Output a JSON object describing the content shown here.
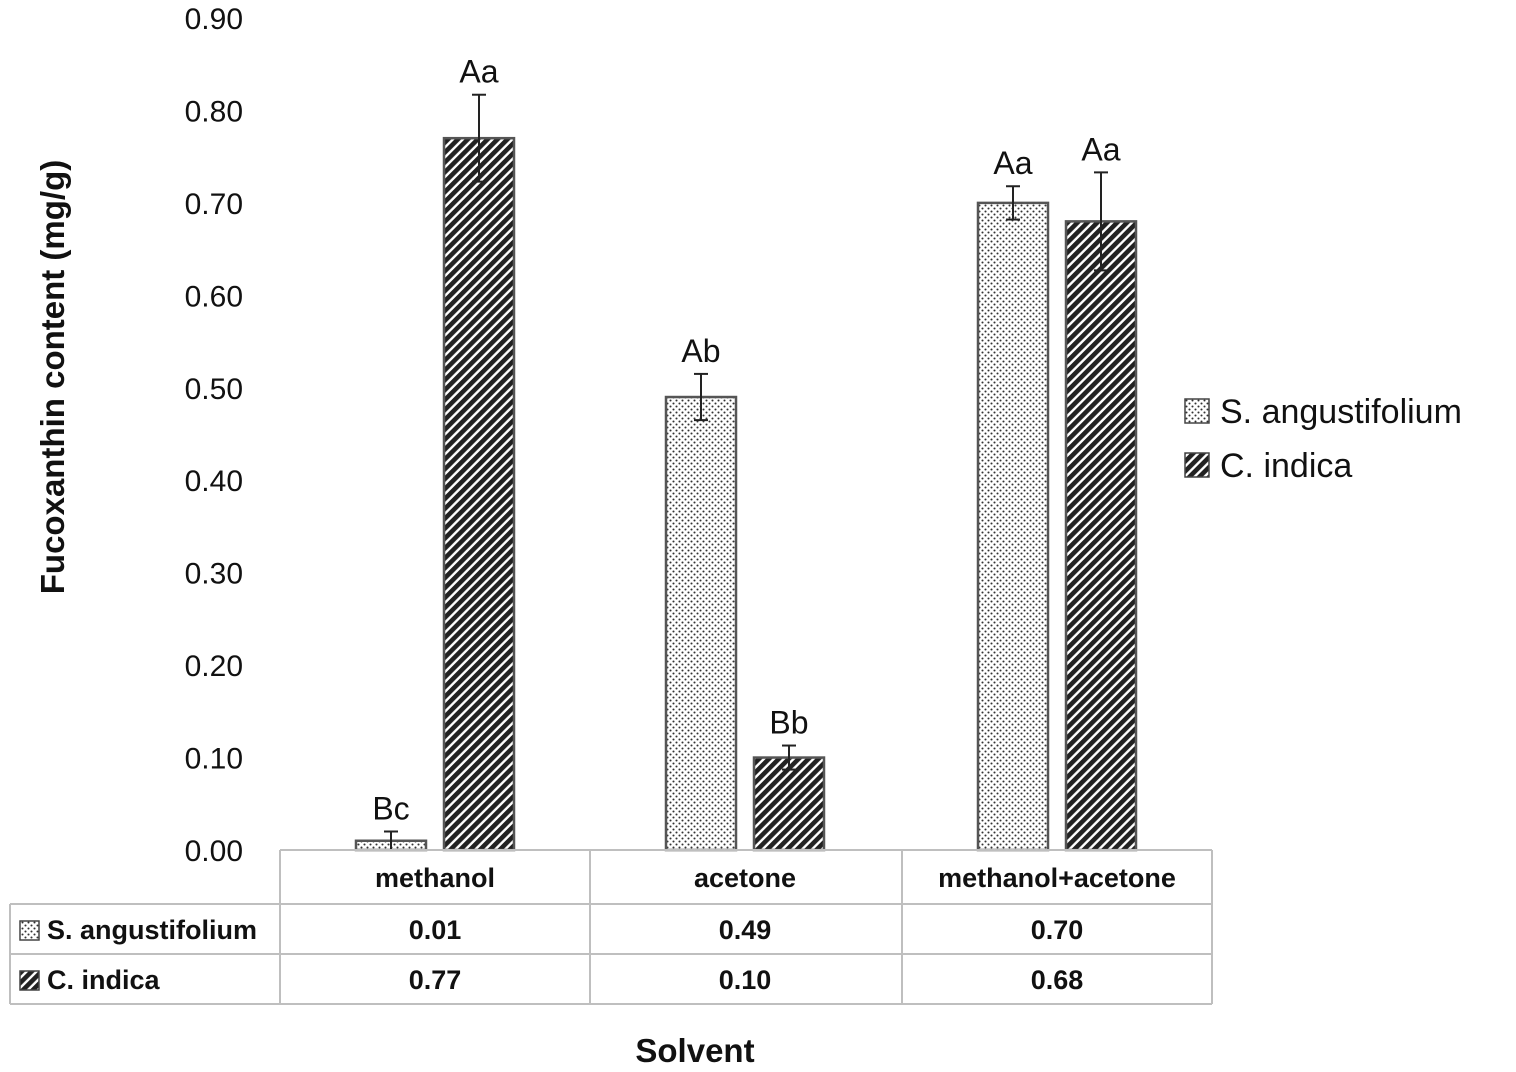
{
  "chart_data": {
    "type": "bar",
    "xlabel": "Solvent",
    "ylabel": "Fucoxanthin content (mg/g)",
    "ylim": [
      0,
      0.9
    ],
    "yticks": [
      "0.00",
      "0.10",
      "0.20",
      "0.30",
      "0.40",
      "0.50",
      "0.60",
      "0.70",
      "0.80",
      "0.90"
    ],
    "categories": [
      "methanol",
      "acetone",
      "methanol+acetone"
    ],
    "legend_position": "right",
    "series": [
      {
        "name": "S. angustifolium",
        "pattern": "dots",
        "values": [
          0.01,
          0.49,
          0.7
        ],
        "value_labels": [
          "0.01",
          "0.49",
          "0.70"
        ],
        "errors": [
          0.01,
          0.025,
          0.018
        ],
        "sig_labels": [
          "Bc",
          "Ab",
          "Aa"
        ]
      },
      {
        "name": "C. indica",
        "pattern": "diagonal-stripes",
        "values": [
          0.77,
          0.1,
          0.68
        ],
        "value_labels": [
          "0.77",
          "0.10",
          "0.68"
        ],
        "errors": [
          0.047,
          0.013,
          0.053
        ],
        "sig_labels": [
          "Aa",
          "Bb",
          "Aa"
        ]
      }
    ],
    "data_table": true,
    "colors": {
      "bar_stroke": "#555555",
      "text": "#111111",
      "grid_table": "#bfbfbf"
    }
  }
}
